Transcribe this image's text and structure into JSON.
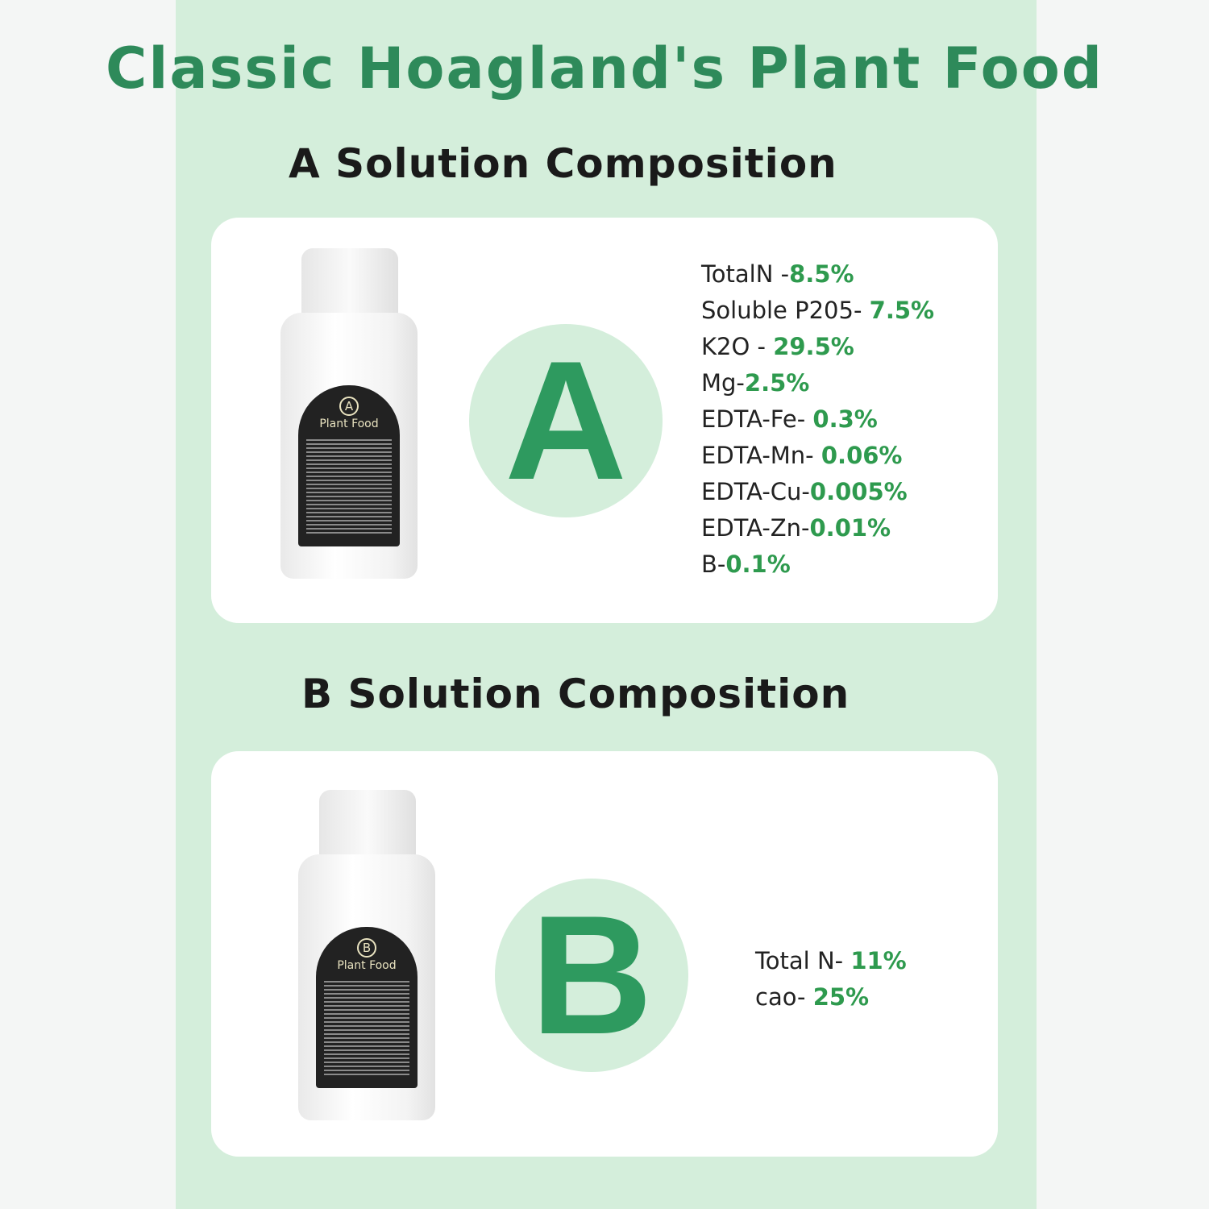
{
  "title": "Classic Hoagland's Plant Food",
  "colors": {
    "accent": "#2e8a5a",
    "panel": "#d4eedb",
    "value": "#2e9a4e"
  },
  "a": {
    "heading": "A Solution Composition",
    "letter": "A",
    "label_letter": "A",
    "label_text": "Plant Food",
    "items": [
      {
        "name": "TotalN -",
        "value": "8.5%"
      },
      {
        "name": "Soluble P205- ",
        "value": "7.5%"
      },
      {
        "name": "K2O - ",
        "value": "29.5%"
      },
      {
        "name": "Mg-",
        "value": "2.5%"
      },
      {
        "name": "EDTA-Fe- ",
        "value": "0.3%"
      },
      {
        "name": "EDTA-Mn- ",
        "value": "0.06%"
      },
      {
        "name": "EDTA-Cu-",
        "value": "0.005%"
      },
      {
        "name": "EDTA-Zn-",
        "value": "0.01%"
      },
      {
        "name": "B-",
        "value": "0.1%"
      }
    ]
  },
  "b": {
    "heading": "B Solution Composition",
    "letter": "B",
    "label_letter": "B",
    "label_text": "Plant Food",
    "items": [
      {
        "name": "Total N- ",
        "value": "11%"
      },
      {
        "name": "cao- ",
        "value": "25%"
      }
    ]
  }
}
